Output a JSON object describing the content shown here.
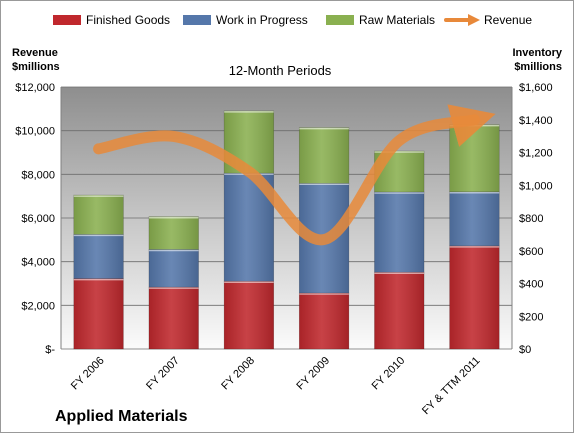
{
  "chart_data": {
    "type": "bar",
    "stacked": true,
    "subtitle": "12-Month Periods",
    "company": "Applied Materials",
    "categories": [
      "FY 2006",
      "FY 2007",
      "FY 2008",
      "FY 2009",
      "FY 2010",
      "FY & TTM 2011"
    ],
    "y_left": {
      "label_line1": "Revenue",
      "label_line2": "$millions",
      "range": [
        0,
        12000
      ],
      "ticks": [
        0,
        2000,
        4000,
        6000,
        8000,
        10000,
        12000
      ],
      "tick_labels": [
        "$-",
        "$2,000",
        "$4,000",
        "$6,000",
        "$8,000",
        "$10,000",
        "$12,000"
      ]
    },
    "y_right": {
      "label_line1": "Inventory",
      "label_line2": "$millions",
      "range": [
        0,
        1600
      ],
      "ticks": [
        0,
        200,
        400,
        600,
        800,
        1000,
        1200,
        1400,
        1600
      ],
      "tick_labels": [
        "$0",
        "$200",
        "$400",
        "$600",
        "$800",
        "$1,000",
        "$1,200",
        "$1,400",
        "$1,600"
      ]
    },
    "series": [
      {
        "name": "Finished Goods",
        "axis": "right",
        "color": "#c0282d",
        "values": [
          430,
          378,
          414,
          342,
          469,
          630
        ]
      },
      {
        "name": "Work in Progress",
        "axis": "right",
        "color": "#5577aa",
        "values": [
          270,
          230,
          660,
          670,
          490,
          330
        ]
      },
      {
        "name": "Raw Materials",
        "axis": "right",
        "color": "#8ab050",
        "values": [
          240,
          200,
          380,
          340,
          250,
          410
        ]
      }
    ],
    "line_series": {
      "name": "Revenue",
      "axis": "left",
      "color": "#e8893a",
      "values": [
        9167,
        9735,
        8129,
        5014,
        9549,
        10500
      ]
    },
    "grid": true,
    "legend": "top"
  }
}
